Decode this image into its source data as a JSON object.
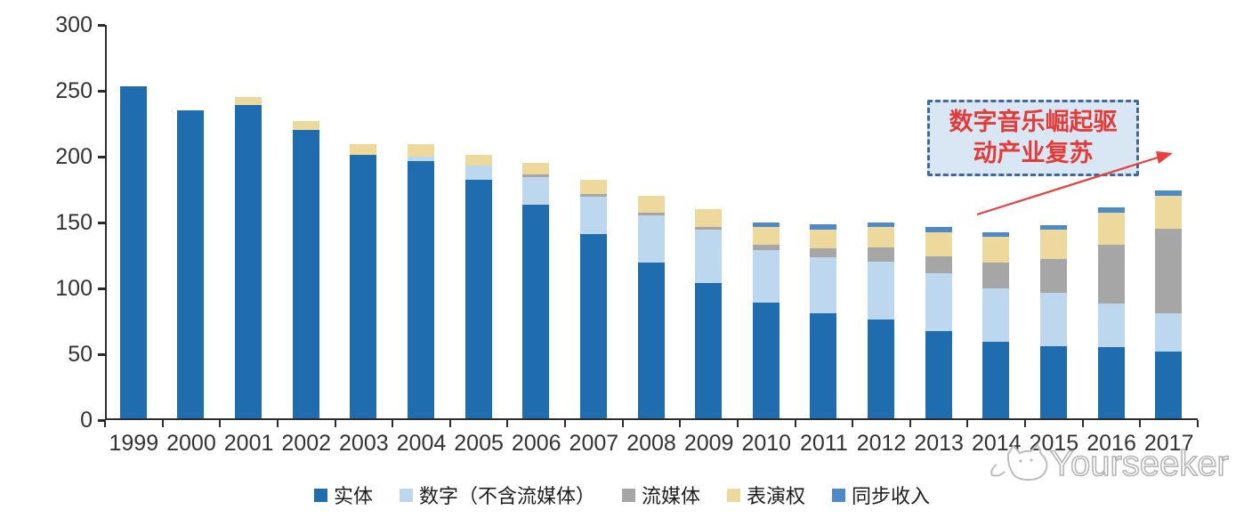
{
  "chart_data": {
    "type": "bar",
    "stacked": true,
    "title": "",
    "xlabel": "",
    "ylabel": "",
    "ylim": [
      0,
      300
    ],
    "yticks": [
      0,
      50,
      100,
      150,
      200,
      250,
      300
    ],
    "grid": false,
    "legend_position": "bottom",
    "categories": [
      "1999",
      "2000",
      "2001",
      "2002",
      "2003",
      "2004",
      "2005",
      "2006",
      "2007",
      "2008",
      "2009",
      "2010",
      "2011",
      "2012",
      "2013",
      "2014",
      "2015",
      "2016",
      "2017"
    ],
    "series": [
      {
        "name": "实体",
        "color": "#1f6dae",
        "values": [
          252,
          234,
          238,
          219,
          200,
          195,
          181,
          162,
          140,
          118,
          103,
          88,
          80,
          75,
          66,
          58,
          55,
          54,
          51
        ]
      },
      {
        "name": "数字（不含流媒体）",
        "color": "#bdd7ee",
        "values": [
          0,
          0,
          0,
          0,
          0,
          4,
          11,
          21,
          28,
          36,
          40,
          40,
          42,
          44,
          44,
          41,
          40,
          33,
          29
        ]
      },
      {
        "name": "流媒体",
        "color": "#a6a6a6",
        "values": [
          0,
          0,
          0,
          0,
          0,
          0,
          0,
          2,
          2,
          2,
          2,
          4,
          7,
          11,
          13,
          19,
          26,
          45,
          64
        ]
      },
      {
        "name": "表演权",
        "color": "#ecd99b",
        "values": [
          0,
          0,
          6,
          7,
          8,
          9,
          8,
          9,
          11,
          13,
          14,
          13,
          14,
          15,
          18,
          20,
          22,
          24,
          25
        ]
      },
      {
        "name": "同步收入",
        "color": "#4e8ac8",
        "values": [
          0,
          0,
          0,
          0,
          0,
          0,
          0,
          0,
          0,
          0,
          0,
          4,
          4,
          4,
          4,
          3,
          4,
          4,
          4
        ]
      }
    ]
  },
  "annotation": {
    "line1": "数字音乐崛起驱",
    "line2": "动产业复苏",
    "text_color": "#e23b38",
    "fill_color": "#d9e7f5",
    "border_color": "#44679b",
    "arrow_color": "#e8403c"
  },
  "watermark": {
    "text": "Yourseeker",
    "logo": "cat-logo",
    "color": "#b5b5b5"
  }
}
